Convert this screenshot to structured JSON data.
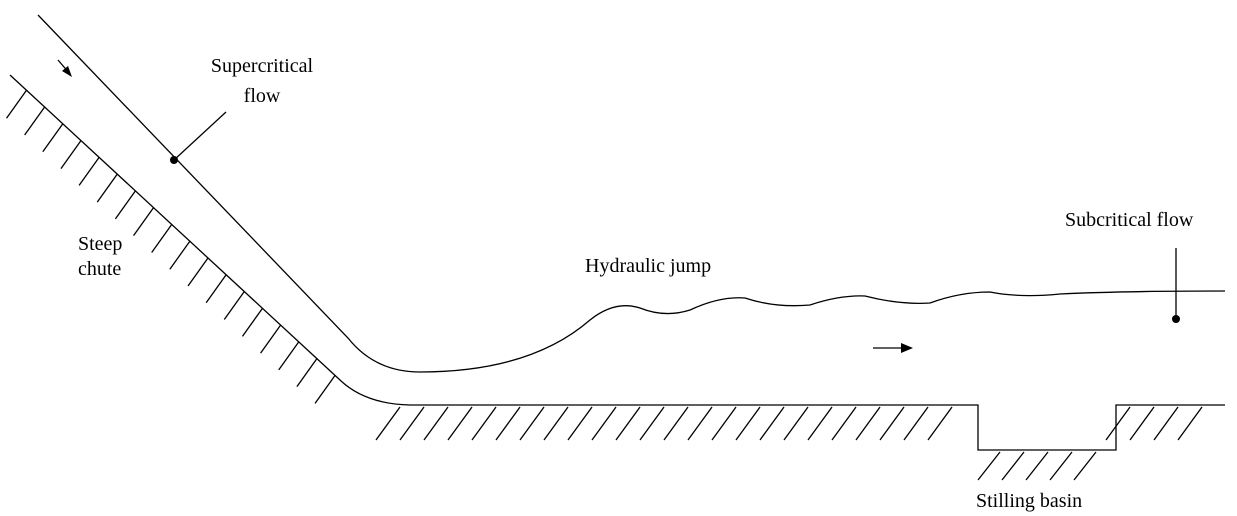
{
  "labels": {
    "supercritical": {
      "lines": [
        "Supercritical",
        "flow"
      ]
    },
    "chute": {
      "lines": [
        "Steep",
        "chute"
      ]
    },
    "jump": "Hydraulic jump",
    "subcritical": "Subcritical flow",
    "basin": "Stilling basin"
  }
}
